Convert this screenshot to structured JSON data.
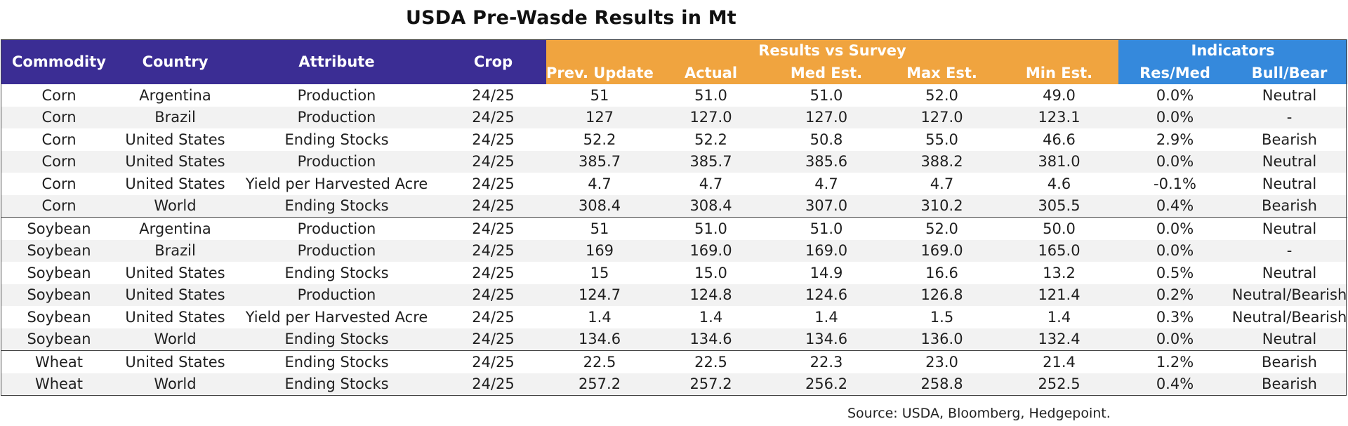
{
  "title": "USDA Pre-Wasde Results in Mt",
  "source": "Source: USDA, Bloomberg, Hedgepoint.",
  "colors": {
    "header_purple": "#3b2d94",
    "header_orange": "#f0a43f",
    "header_blue": "#3589dc",
    "row_stripe": "#f2f2f2"
  },
  "header": {
    "commodity": "Commodity",
    "country": "Country",
    "attribute": "Attribute",
    "crop": "Crop",
    "group_results": "Results vs Survey",
    "group_indicators": "Indicators",
    "prev_update": "Prev. Update",
    "actual": "Actual",
    "med_est": "Med Est.",
    "max_est": "Max Est.",
    "min_est": "Min Est.",
    "res_med": "Res/Med",
    "bull_bear": "Bull/Bear"
  },
  "rows": [
    [
      "Corn",
      "Argentina",
      "Production",
      "24/25",
      "51",
      "51.0",
      "51.0",
      "52.0",
      "49.0",
      "0.0%",
      "Neutral"
    ],
    [
      "Corn",
      "Brazil",
      "Production",
      "24/25",
      "127",
      "127.0",
      "127.0",
      "127.0",
      "123.1",
      "0.0%",
      "-"
    ],
    [
      "Corn",
      "United States",
      "Ending Stocks",
      "24/25",
      "52.2",
      "52.2",
      "50.8",
      "55.0",
      "46.6",
      "2.9%",
      "Bearish"
    ],
    [
      "Corn",
      "United States",
      "Production",
      "24/25",
      "385.7",
      "385.7",
      "385.6",
      "388.2",
      "381.0",
      "0.0%",
      "Neutral"
    ],
    [
      "Corn",
      "United States",
      "Yield per Harvested Acre",
      "24/25",
      "4.7",
      "4.7",
      "4.7",
      "4.7",
      "4.6",
      "-0.1%",
      "Neutral"
    ],
    [
      "Corn",
      "World",
      "Ending Stocks",
      "24/25",
      "308.4",
      "308.4",
      "307.0",
      "310.2",
      "305.5",
      "0.4%",
      "Bearish"
    ],
    [
      "Soybean",
      "Argentina",
      "Production",
      "24/25",
      "51",
      "51.0",
      "51.0",
      "52.0",
      "50.0",
      "0.0%",
      "Neutral"
    ],
    [
      "Soybean",
      "Brazil",
      "Production",
      "24/25",
      "169",
      "169.0",
      "169.0",
      "169.0",
      "165.0",
      "0.0%",
      "-"
    ],
    [
      "Soybean",
      "United States",
      "Ending Stocks",
      "24/25",
      "15",
      "15.0",
      "14.9",
      "16.6",
      "13.2",
      "0.5%",
      "Neutral"
    ],
    [
      "Soybean",
      "United States",
      "Production",
      "24/25",
      "124.7",
      "124.8",
      "124.6",
      "126.8",
      "121.4",
      "0.2%",
      "Neutral/Bearish"
    ],
    [
      "Soybean",
      "United States",
      "Yield per Harvested Acre",
      "24/25",
      "1.4",
      "1.4",
      "1.4",
      "1.5",
      "1.4",
      "0.3%",
      "Neutral/Bearish"
    ],
    [
      "Soybean",
      "World",
      "Ending Stocks",
      "24/25",
      "134.6",
      "134.6",
      "134.6",
      "136.0",
      "132.4",
      "0.0%",
      "Neutral"
    ],
    [
      "Wheat",
      "United States",
      "Ending Stocks",
      "24/25",
      "22.5",
      "22.5",
      "22.3",
      "23.0",
      "21.4",
      "1.2%",
      "Bearish"
    ],
    [
      "Wheat",
      "World",
      "Ending Stocks",
      "24/25",
      "257.2",
      "257.2",
      "256.2",
      "258.8",
      "252.5",
      "0.4%",
      "Bearish"
    ]
  ]
}
